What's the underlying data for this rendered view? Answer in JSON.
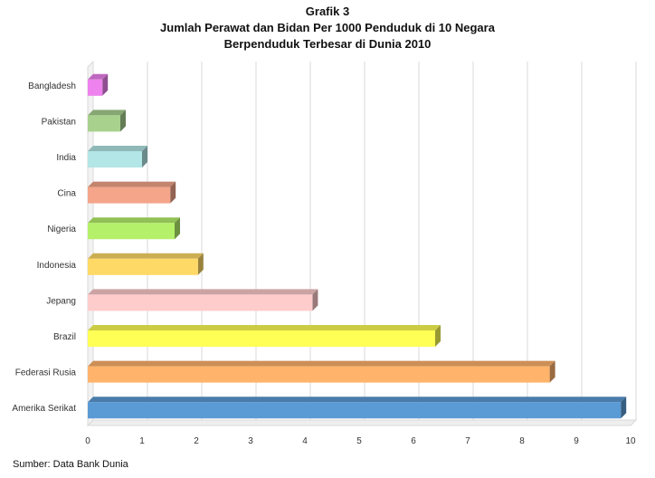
{
  "chart_data": {
    "type": "bar",
    "orientation": "horizontal",
    "title_lines": [
      "Grafik 3",
      "Jumlah Perawat dan Bidan Per 1000 Penduduk di 10 Negara",
      "Berpenduduk Terbesar di Dunia 2010"
    ],
    "source": "Sumber: Data Bank Dunia",
    "categories": [
      "Bangladesh",
      "Pakistan",
      "India",
      "Cina",
      "Nigeria",
      "Indonesia",
      "Jepang",
      "Brazil",
      "Federasi Rusia",
      "Amerika Serikat"
    ],
    "values": [
      0.27,
      0.6,
      1.0,
      1.52,
      1.6,
      2.03,
      4.14,
      6.4,
      8.51,
      9.82
    ],
    "colors": [
      "#ee82ee",
      "#a9d18e",
      "#b3e6e6",
      "#f4a58a",
      "#b5f06a",
      "#ffd966",
      "#ffcccc",
      "#ffff55",
      "#ffb36b",
      "#5b9bd5"
    ],
    "xlim": [
      0,
      10
    ],
    "xticks": [
      "0",
      "1",
      "2",
      "3",
      "4",
      "5",
      "6",
      "7",
      "8",
      "9",
      "10"
    ],
    "grid": true,
    "legend": "none",
    "style": "3d"
  }
}
